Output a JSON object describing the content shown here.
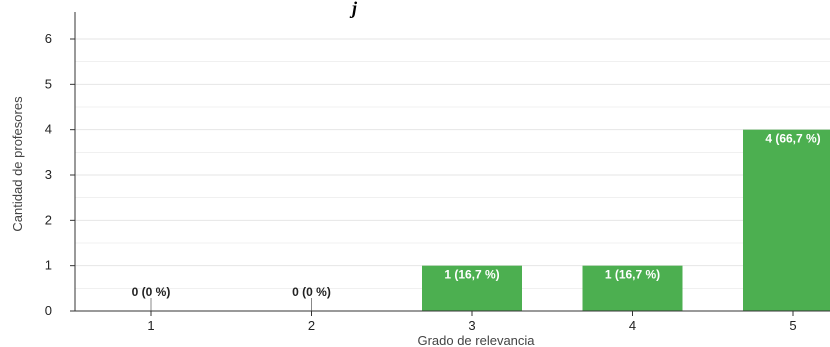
{
  "title_fragment": "j",
  "chart_data": {
    "type": "bar",
    "categories": [
      "1",
      "2",
      "3",
      "4",
      "5"
    ],
    "values": [
      0,
      0,
      1,
      1,
      4
    ],
    "data_labels": [
      "0 (0 %)",
      "0 (0 %)",
      "1 (16,7 %)",
      "1 (16,7 %)",
      "4 (66,7 %)"
    ],
    "xlabel": "Grado de relevancia",
    "ylabel": "Cantidad de profesores",
    "yticks": [
      "0",
      "1",
      "2",
      "3",
      "4",
      "5",
      "6"
    ],
    "ylim": [
      0,
      6
    ],
    "grid": true,
    "legend": "none",
    "bar_color": "#4caf50",
    "gridline_color": "#e6e6e6",
    "axis_color": "#333333"
  }
}
